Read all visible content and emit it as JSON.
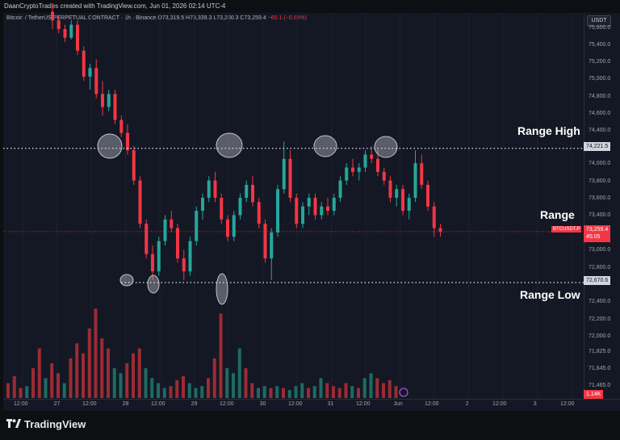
{
  "header": {
    "author_line": "DaanCryptoTrades created with TradingView.com, Jun 01, 2026 02:14 UTC-4"
  },
  "symbol": {
    "name": "Bitcoin / TetherUS PERPETUAL CONTRACT · 1h · Binance",
    "open": "O73,319.5",
    "high": "H73,339.3",
    "low": "L73,200.3",
    "close": "C73,259.4",
    "change": "−60.1 (−0.08%)"
  },
  "currency_button": "USDT",
  "price_axis": [
    "75,600.0",
    "75,400.0",
    "75,200.0",
    "75,000.0",
    "74,800.0",
    "74,600.0",
    "74,400.0",
    "74,000.0",
    "73,800.0",
    "73,600.0",
    "73,400.0",
    "73,000.0",
    "72,800.0",
    "72,400.0",
    "72,200.0",
    "72,000.0",
    "71,825.0",
    "71,645.0",
    "71,465.0"
  ],
  "time_axis": [
    "12:00",
    "27",
    "12:00",
    "28",
    "12:00",
    "29",
    "12:00",
    "30",
    "12:00",
    "31",
    "12:00",
    "Jun",
    "12:00",
    "2",
    "12:00",
    "3",
    "12:00"
  ],
  "annotations": {
    "range_high": "Range High",
    "range": "Range",
    "range_low": "Range Low"
  },
  "levels": {
    "high_label": "74,221.5",
    "low_label": "72,670.6",
    "last_label": "73,259.4",
    "countdown": "45:05",
    "symbol_tag": "BTCUSDT.P",
    "volume_label": "1.14K"
  },
  "colors": {
    "up": "#26a69a",
    "down": "#f23645",
    "background": "#141824"
  },
  "branding": "TradingView",
  "chart_data": {
    "type": "candlestick",
    "ylim": [
      71400,
      75700
    ],
    "range_high": 74221.5,
    "range_low": 72670.6,
    "last_price": 73259.4,
    "candles": [
      [
        75800,
        75900,
        75600,
        75700
      ],
      [
        75700,
        75750,
        75550,
        75600
      ],
      [
        75600,
        75650,
        75450,
        75500
      ],
      [
        75500,
        75700,
        75480,
        75650
      ],
      [
        75650,
        75700,
        75300,
        75350
      ],
      [
        75350,
        75400,
        75000,
        75050
      ],
      [
        75050,
        75200,
        74900,
        75150
      ],
      [
        75150,
        75250,
        74800,
        74850
      ],
      [
        74850,
        75000,
        74600,
        74700
      ],
      [
        74700,
        74900,
        74650,
        74850
      ],
      [
        74850,
        74900,
        74500,
        74550
      ],
      [
        74550,
        74600,
        74350,
        74400
      ],
      [
        74400,
        74500,
        74150,
        74200
      ],
      [
        74200,
        74250,
        73800,
        73850
      ],
      [
        73850,
        73900,
        73300,
        73350
      ],
      [
        73350,
        73400,
        72950,
        73000
      ],
      [
        73000,
        73100,
        72700,
        72800
      ],
      [
        72800,
        73200,
        72750,
        73150
      ],
      [
        73150,
        73450,
        73100,
        73400
      ],
      [
        73400,
        73500,
        73250,
        73300
      ],
      [
        73300,
        73350,
        72900,
        72950
      ],
      [
        72950,
        73050,
        72700,
        72800
      ],
      [
        72800,
        73200,
        72750,
        73150
      ],
      [
        73150,
        73550,
        73100,
        73500
      ],
      [
        73500,
        73700,
        73400,
        73650
      ],
      [
        73650,
        73900,
        73600,
        73850
      ],
      [
        73850,
        73950,
        73600,
        73650
      ],
      [
        73650,
        73700,
        73350,
        73400
      ],
      [
        73400,
        73450,
        73150,
        73200
      ],
      [
        73200,
        73500,
        73150,
        73450
      ],
      [
        73450,
        73700,
        73400,
        73650
      ],
      [
        73650,
        73850,
        73600,
        73800
      ],
      [
        73800,
        73900,
        73550,
        73600
      ],
      [
        73600,
        73650,
        73300,
        73350
      ],
      [
        73350,
        73400,
        72900,
        72950
      ],
      [
        72950,
        73300,
        72700,
        73250
      ],
      [
        73250,
        73800,
        73200,
        73750
      ],
      [
        73750,
        74300,
        73700,
        74100
      ],
      [
        74100,
        74200,
        73600,
        73650
      ],
      [
        73650,
        73700,
        73300,
        73350
      ],
      [
        73350,
        73600,
        73300,
        73550
      ],
      [
        73550,
        73700,
        73450,
        73650
      ],
      [
        73650,
        73700,
        73400,
        73450
      ],
      [
        73450,
        73600,
        73400,
        73550
      ],
      [
        73550,
        73650,
        73450,
        73500
      ],
      [
        73500,
        73700,
        73450,
        73650
      ],
      [
        73650,
        73900,
        73600,
        73850
      ],
      [
        73850,
        74050,
        73800,
        74000
      ],
      [
        74000,
        74100,
        73900,
        73950
      ],
      [
        73950,
        74050,
        73850,
        74000
      ],
      [
        74000,
        74200,
        73950,
        74150
      ],
      [
        74150,
        74250,
        74050,
        74100
      ],
      [
        74100,
        74200,
        73900,
        73950
      ],
      [
        73950,
        74000,
        73800,
        73850
      ],
      [
        73850,
        73900,
        73600,
        73650
      ],
      [
        73650,
        73800,
        73550,
        73750
      ],
      [
        73750,
        73800,
        73450,
        73500
      ],
      [
        73500,
        73700,
        73400,
        73650
      ],
      [
        73650,
        74200,
        73600,
        74050
      ],
      [
        74050,
        74150,
        73750,
        73800
      ],
      [
        73800,
        73850,
        73500,
        73550
      ],
      [
        73550,
        73600,
        73200,
        73300
      ],
      [
        73300,
        73350,
        73200,
        73259
      ]
    ],
    "volumes": [
      0.15,
      0.22,
      0.1,
      0.12,
      0.3,
      0.5,
      0.2,
      0.35,
      0.25,
      0.15,
      0.4,
      0.55,
      0.45,
      0.7,
      0.9,
      0.6,
      0.5,
      0.3,
      0.25,
      0.35,
      0.45,
      0.5,
      0.3,
      0.2,
      0.15,
      0.1,
      0.12,
      0.18,
      0.22,
      0.15,
      0.1,
      0.12,
      0.2,
      0.4,
      0.85,
      0.3,
      0.25,
      0.5,
      0.3,
      0.15,
      0.1,
      0.12,
      0.1,
      0.12,
      0.1,
      0.08,
      0.12,
      0.15,
      0.1,
      0.12,
      0.2,
      0.15,
      0.12,
      0.1,
      0.15,
      0.12,
      0.1,
      0.2,
      0.25,
      0.2,
      0.15,
      0.18,
      0.12
    ]
  }
}
